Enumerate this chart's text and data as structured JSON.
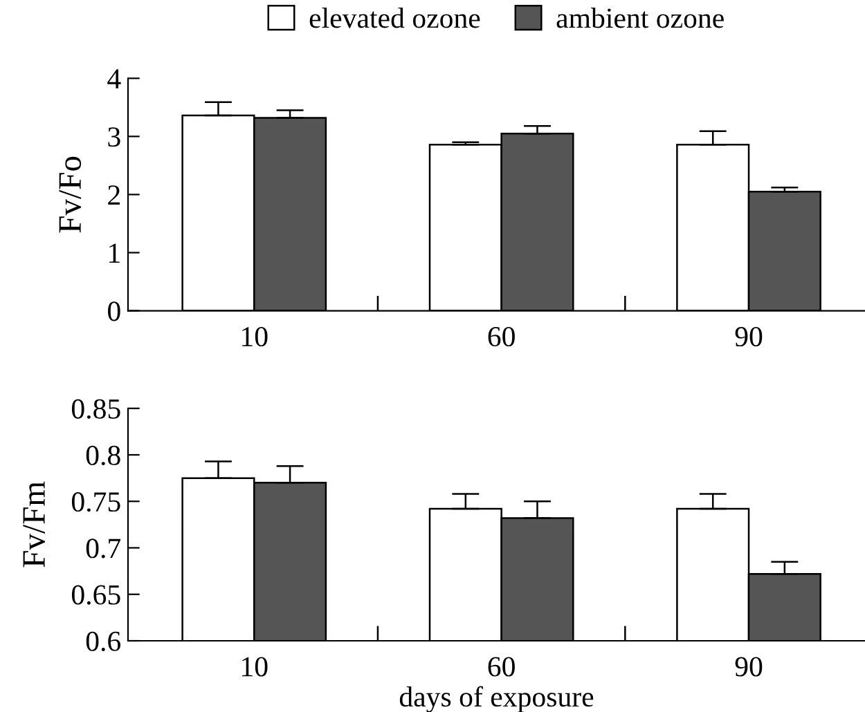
{
  "chart_data": [
    {
      "type": "bar",
      "ylabel": "Fv/Fo",
      "categories": [
        "10",
        "60",
        "90"
      ],
      "ylim": [
        0,
        4
      ],
      "yticks": [
        0,
        1,
        2,
        3,
        4
      ],
      "legend": "top",
      "grid": false,
      "series": [
        {
          "name": "elevated ozone",
          "color": "#ffffff",
          "values": [
            3.36,
            2.86,
            2.86
          ],
          "errors": [
            [
              3.36,
              3.59
            ],
            [
              2.86,
              2.9
            ],
            [
              2.86,
              3.09
            ]
          ]
        },
        {
          "name": "ambient ozone",
          "color": "#555555",
          "values": [
            3.32,
            3.05,
            2.05
          ],
          "errors": [
            [
              3.32,
              3.45
            ],
            [
              3.05,
              3.18
            ],
            [
              2.05,
              2.12
            ]
          ]
        }
      ]
    },
    {
      "type": "bar",
      "ylabel": "Fv/Fm",
      "xlabel": "days of exposure",
      "categories": [
        "10",
        "60",
        "90"
      ],
      "ylim": [
        0.6,
        0.85
      ],
      "yticks": [
        {
          "value": 0.6,
          "label": "0.6"
        },
        {
          "value": 0.65,
          "label": "0.65"
        },
        {
          "value": 0.7,
          "label": "0.7"
        },
        {
          "value": 0.75,
          "label": "0.75"
        },
        {
          "value": 0.8,
          "label": "0.8"
        },
        {
          "value": 0.85,
          "label": "0.85"
        }
      ],
      "grid": false,
      "series": [
        {
          "color": "#ffffff",
          "values": [
            0.775,
            0.742,
            0.742
          ],
          "errors": [
            [
              0.775,
              0.793
            ],
            [
              0.742,
              0.758
            ],
            [
              0.742,
              0.758
            ]
          ]
        },
        {
          "color": "#555555",
          "values": [
            0.77,
            0.732,
            0.672
          ],
          "errors": [
            [
              0.77,
              0.788
            ],
            [
              0.732,
              0.75
            ],
            [
              0.672,
              0.685
            ]
          ]
        }
      ]
    }
  ]
}
